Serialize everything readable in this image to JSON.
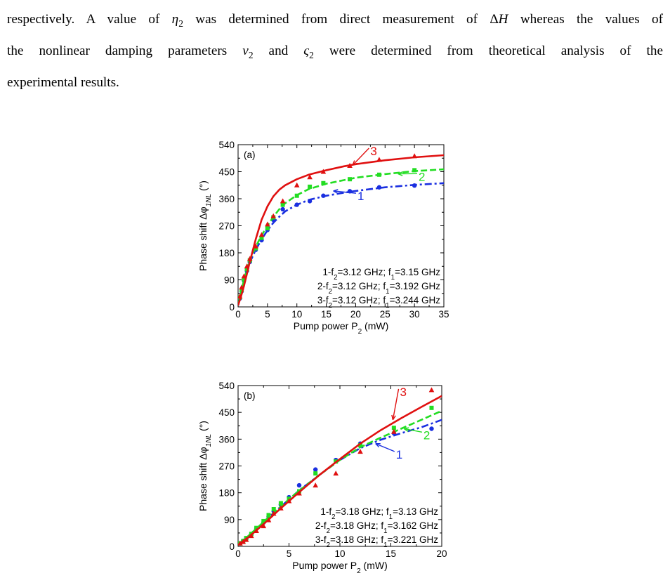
{
  "paragraph": {
    "l1": [
      {
        "t": "respectively. A value of "
      },
      {
        "t": "η",
        "i": true
      },
      {
        "t": "2",
        "sub": true
      },
      {
        "t": " was determined from direct measurement of Δ"
      },
      {
        "t": "H",
        "i": true
      },
      {
        "t": " whereas the values of"
      }
    ],
    "l2": [
      {
        "t": "the nonlinear damping parameters "
      },
      {
        "t": "ν",
        "i": true
      },
      {
        "t": "2",
        "sub": true
      },
      {
        "t": " and "
      },
      {
        "t": "ς",
        "i": true
      },
      {
        "t": "2",
        "sub": true
      },
      {
        "t": " were determined from theoretical analysis of the"
      }
    ],
    "l3": [
      {
        "t": "experimental results."
      }
    ]
  },
  "chart_data": [
    {
      "type": "line",
      "panel_label": "(a)",
      "xlabel": [
        {
          "t": "Pump power P"
        },
        {
          "t": "2",
          "sub": true
        },
        {
          "t": " (mW)"
        }
      ],
      "ylabel": [
        {
          "t": "Phase shift Δφ"
        },
        {
          "t": "1",
          "sub": true,
          "i": true
        },
        {
          "t": "NL",
          "sub": true,
          "i": true
        },
        {
          "t": " (°)"
        }
      ],
      "xlim": [
        0,
        35
      ],
      "ylim": [
        0,
        540
      ],
      "xticks": [
        0,
        5,
        10,
        15,
        20,
        25,
        30,
        35
      ],
      "yticks": [
        0,
        90,
        180,
        270,
        360,
        450,
        540
      ],
      "legend": [
        [
          {
            "t": "1-f"
          },
          {
            "t": "2",
            "sub": true
          },
          {
            "t": "=3.12 GHz; f"
          },
          {
            "t": "1",
            "sub": true
          },
          {
            "t": "=3.15 GHz"
          }
        ],
        [
          {
            "t": "2-f"
          },
          {
            "t": "2",
            "sub": true
          },
          {
            "t": "=3.12 GHz; f"
          },
          {
            "t": "1",
            "sub": true
          },
          {
            "t": "=3.192 GHz"
          }
        ],
        [
          {
            "t": "3-f"
          },
          {
            "t": "2",
            "sub": true
          },
          {
            "t": "=3.12 GHz; f"
          },
          {
            "t": "1",
            "sub": true
          },
          {
            "t": "=3.244 GHz"
          }
        ]
      ],
      "series": [
        {
          "label": "1",
          "color": "#1a2fe0",
          "dash": "dashdot",
          "marker": "circle",
          "points": [
            [
              0.3,
              28
            ],
            [
              0.6,
              52
            ],
            [
              1,
              88
            ],
            [
              1.5,
              120
            ],
            [
              2,
              150
            ],
            [
              3,
              190
            ],
            [
              4,
              222
            ],
            [
              5,
              256
            ],
            [
              6,
              290
            ],
            [
              7.6,
              325
            ],
            [
              10,
              340
            ],
            [
              12.2,
              352
            ],
            [
              14.5,
              370
            ],
            [
              19,
              385
            ],
            [
              24,
              398
            ],
            [
              30,
              404
            ]
          ],
          "curve": [
            [
              0,
              5
            ],
            [
              0.5,
              44
            ],
            [
              1,
              85
            ],
            [
              1.5,
              118
            ],
            [
              2,
              148
            ],
            [
              3,
              190
            ],
            [
              4,
              225
            ],
            [
              5,
              255
            ],
            [
              6,
              280
            ],
            [
              7,
              300
            ],
            [
              8,
              318
            ],
            [
              10,
              340
            ],
            [
              12,
              356
            ],
            [
              15,
              370
            ],
            [
              18,
              380
            ],
            [
              20,
              386
            ],
            [
              25,
              398
            ],
            [
              30,
              406
            ],
            [
              35,
              412
            ]
          ]
        },
        {
          "label": "2",
          "color": "#22dd22",
          "dash": "dashed",
          "marker": "square",
          "points": [
            [
              0.3,
              32
            ],
            [
              0.6,
              56
            ],
            [
              1,
              92
            ],
            [
              1.5,
              125
            ],
            [
              2,
              155
            ],
            [
              3,
              195
            ],
            [
              4,
              230
            ],
            [
              5,
              262
            ],
            [
              6,
              298
            ],
            [
              7.6,
              340
            ],
            [
              10,
              370
            ],
            [
              12.2,
              400
            ],
            [
              14.5,
              412
            ],
            [
              19,
              425
            ],
            [
              24,
              440
            ],
            [
              30,
              455
            ]
          ],
          "curve": [
            [
              0,
              5
            ],
            [
              0.5,
              48
            ],
            [
              1,
              90
            ],
            [
              1.5,
              125
            ],
            [
              2,
              156
            ],
            [
              3,
              200
            ],
            [
              4,
              238
            ],
            [
              5,
              270
            ],
            [
              6,
              300
            ],
            [
              7,
              325
            ],
            [
              8,
              345
            ],
            [
              10,
              372
            ],
            [
              12,
              392
            ],
            [
              15,
              410
            ],
            [
              18,
              422
            ],
            [
              20,
              430
            ],
            [
              25,
              442
            ],
            [
              30,
              452
            ],
            [
              35,
              458
            ]
          ]
        },
        {
          "label": "3",
          "color": "#e01010",
          "dash": "solid",
          "marker": "triangle",
          "points": [
            [
              0.3,
              35
            ],
            [
              0.6,
              65
            ],
            [
              1,
              102
            ],
            [
              1.5,
              135
            ],
            [
              2,
              160
            ],
            [
              3,
              202
            ],
            [
              4,
              240
            ],
            [
              5,
              275
            ],
            [
              6,
              302
            ],
            [
              7.6,
              352
            ],
            [
              10,
              405
            ],
            [
              12.2,
              432
            ],
            [
              14.5,
              450
            ],
            [
              19,
              470
            ],
            [
              24,
              490
            ],
            [
              30,
              502
            ]
          ],
          "curve": [
            [
              0,
              5
            ],
            [
              0.5,
              35
            ],
            [
              1,
              70
            ],
            [
              1.5,
              110
            ],
            [
              2,
              150
            ],
            [
              3,
              225
            ],
            [
              4,
              290
            ],
            [
              5,
              335
            ],
            [
              6,
              368
            ],
            [
              7,
              390
            ],
            [
              8,
              405
            ],
            [
              10,
              425
            ],
            [
              12,
              440
            ],
            [
              15,
              455
            ],
            [
              18,
              468
            ],
            [
              20,
              475
            ],
            [
              25,
              488
            ],
            [
              30,
              498
            ],
            [
              35,
              505
            ]
          ]
        }
      ],
      "annotations": [
        {
          "text": "1",
          "color": "#1a2fe0",
          "tx": 20.3,
          "ty": 355,
          "ax": 16.2,
          "ay": 386
        },
        {
          "text": "2",
          "color": "#22dd22",
          "tx": 30.7,
          "ty": 420,
          "ax": 27.2,
          "ay": 443
        },
        {
          "text": "3",
          "color": "#e01010",
          "tx": 22.5,
          "ty": 505,
          "ax": 19.5,
          "ay": 472
        }
      ]
    },
    {
      "type": "line",
      "panel_label": "(b)",
      "xlabel": [
        {
          "t": "Pump power P"
        },
        {
          "t": "2",
          "sub": true
        },
        {
          "t": " (mW)"
        }
      ],
      "ylabel": [
        {
          "t": "Phase shift Δφ"
        },
        {
          "t": "1",
          "sub": true,
          "i": true
        },
        {
          "t": "NL",
          "sub": true,
          "i": true
        },
        {
          "t": " (°)"
        }
      ],
      "xlim": [
        0,
        20
      ],
      "ylim": [
        0,
        540
      ],
      "xticks": [
        0,
        5,
        10,
        15,
        20
      ],
      "yticks": [
        0,
        90,
        180,
        270,
        360,
        450,
        540
      ],
      "legend": [
        [
          {
            "t": "1-f"
          },
          {
            "t": "2",
            "sub": true
          },
          {
            "t": "=3.18 GHz; f"
          },
          {
            "t": "1",
            "sub": true
          },
          {
            "t": "=3.13 GHz"
          }
        ],
        [
          {
            "t": "2-f"
          },
          {
            "t": "2",
            "sub": true
          },
          {
            "t": "=3.18 GHz; f"
          },
          {
            "t": "1",
            "sub": true
          },
          {
            "t": "=3.162 GHz"
          }
        ],
        [
          {
            "t": "3-f"
          },
          {
            "t": "2",
            "sub": true
          },
          {
            "t": "=3.18 GHz; f"
          },
          {
            "t": "1",
            "sub": true
          },
          {
            "t": "=3.221 GHz"
          }
        ]
      ],
      "series": [
        {
          "label": "1",
          "color": "#1a2fe0",
          "dash": "dashdot",
          "marker": "circle",
          "points": [
            [
              0.2,
              10
            ],
            [
              0.5,
              18
            ],
            [
              0.8,
              26
            ],
            [
              1.3,
              40
            ],
            [
              1.8,
              60
            ],
            [
              2.5,
              80
            ],
            [
              3,
              100
            ],
            [
              3.5,
              118
            ],
            [
              4.2,
              140
            ],
            [
              5,
              165
            ],
            [
              6,
              205
            ],
            [
              7.6,
              258
            ],
            [
              9.6,
              290
            ],
            [
              12,
              345
            ],
            [
              15.3,
              380
            ],
            [
              19,
              395
            ]
          ],
          "curve": [
            [
              0,
              5
            ],
            [
              1,
              35
            ],
            [
              2,
              65
            ],
            [
              3,
              97
            ],
            [
              4,
              127
            ],
            [
              5,
              158
            ],
            [
              6,
              188
            ],
            [
              8,
              240
            ],
            [
              10,
              290
            ],
            [
              12,
              330
            ],
            [
              14,
              358
            ],
            [
              16,
              380
            ],
            [
              18,
              400
            ],
            [
              20,
              425
            ]
          ]
        },
        {
          "label": "2",
          "color": "#22dd22",
          "dash": "dashed",
          "marker": "square",
          "points": [
            [
              0.2,
              10
            ],
            [
              0.5,
              18
            ],
            [
              0.8,
              28
            ],
            [
              1.3,
              42
            ],
            [
              1.8,
              62
            ],
            [
              2.5,
              85
            ],
            [
              3,
              105
            ],
            [
              3.5,
              125
            ],
            [
              4.2,
              145
            ],
            [
              5,
              160
            ],
            [
              6,
              185
            ],
            [
              7.6,
              245
            ],
            [
              9.6,
              285
            ],
            [
              12,
              340
            ],
            [
              15.3,
              398
            ],
            [
              19,
              465
            ]
          ],
          "curve": [
            [
              0,
              5
            ],
            [
              1,
              35
            ],
            [
              2,
              66
            ],
            [
              3,
              98
            ],
            [
              4,
              128
            ],
            [
              5,
              158
            ],
            [
              6,
              187
            ],
            [
              8,
              240
            ],
            [
              10,
              290
            ],
            [
              12,
              333
            ],
            [
              14,
              365
            ],
            [
              16,
              395
            ],
            [
              18,
              425
            ],
            [
              20,
              455
            ]
          ]
        },
        {
          "label": "3",
          "color": "#e01010",
          "dash": "solid",
          "marker": "triangle",
          "points": [
            [
              0.2,
              10
            ],
            [
              0.5,
              15
            ],
            [
              0.8,
              22
            ],
            [
              1.3,
              35
            ],
            [
              1.8,
              52
            ],
            [
              2.5,
              68
            ],
            [
              3,
              88
            ],
            [
              3.5,
              110
            ],
            [
              4.2,
              128
            ],
            [
              5,
              152
            ],
            [
              6,
              178
            ],
            [
              7.6,
              205
            ],
            [
              9.6,
              245
            ],
            [
              12,
              318
            ],
            [
              15.3,
              385
            ],
            [
              19,
              525
            ]
          ],
          "curve": [
            [
              0,
              5
            ],
            [
              1,
              30
            ],
            [
              2,
              60
            ],
            [
              3,
              90
            ],
            [
              4,
              122
            ],
            [
              5,
              152
            ],
            [
              6,
              182
            ],
            [
              8,
              240
            ],
            [
              10,
              293
            ],
            [
              12,
              345
            ],
            [
              14,
              390
            ],
            [
              16,
              430
            ],
            [
              18,
              468
            ],
            [
              20,
              505
            ]
          ]
        }
      ],
      "annotations": [
        {
          "text": "1",
          "color": "#1a2fe0",
          "tx": 15.5,
          "ty": 295,
          "ax": 13.5,
          "ay": 345
        },
        {
          "text": "2",
          "color": "#22dd22",
          "tx": 18.2,
          "ty": 360,
          "ax": 16.3,
          "ay": 395
        },
        {
          "text": "3",
          "color": "#e01010",
          "tx": 15.9,
          "ty": 505,
          "ax": 15.2,
          "ay": 425
        }
      ]
    }
  ]
}
